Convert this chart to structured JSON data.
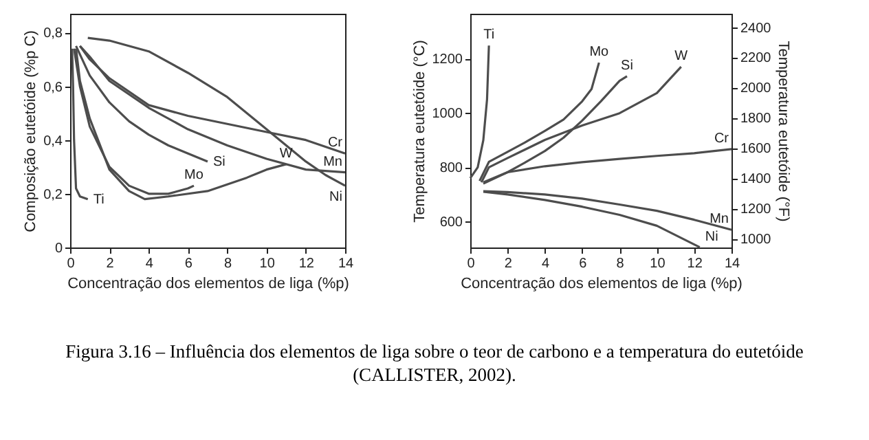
{
  "chart_data": [
    {
      "type": "line",
      "xlabel": "Concentração dos elementos de liga (%p)",
      "ylabel": "Composição eutetóide (%p C)",
      "xlim": [
        0,
        14
      ],
      "xticks": [
        0,
        2,
        4,
        6,
        8,
        10,
        12,
        14
      ],
      "ylim": [
        0,
        0.87
      ],
      "yticks": [
        0,
        {
          "value": 0.2,
          "label": "0,2"
        },
        {
          "value": 0.4,
          "label": "0,4"
        },
        {
          "value": 0.6,
          "label": "0,6"
        },
        {
          "value": 0.8,
          "label": "0,8"
        }
      ],
      "series": [
        {
          "name": "Ni",
          "color": "#4d4d4d",
          "x": [
            0.9,
            2,
            4,
            6,
            8,
            10,
            11,
            12,
            13,
            14
          ],
          "values": [
            0.78,
            0.77,
            0.73,
            0.65,
            0.56,
            0.44,
            0.38,
            0.32,
            0.27,
            0.23
          ]
        },
        {
          "name": "Cr",
          "color": "#4d4d4d",
          "x": [
            0.5,
            1,
            2,
            4,
            6,
            8,
            10,
            12,
            14
          ],
          "values": [
            0.75,
            0.7,
            0.63,
            0.53,
            0.49,
            0.46,
            0.43,
            0.4,
            0.35
          ]
        },
        {
          "name": "Mn",
          "color": "#4d4d4d",
          "x": [
            0.5,
            1,
            2,
            4,
            6,
            8,
            10,
            12,
            14
          ],
          "values": [
            0.75,
            0.71,
            0.62,
            0.52,
            0.44,
            0.38,
            0.33,
            0.29,
            0.28
          ]
        },
        {
          "name": "Si",
          "color": "#4d4d4d",
          "x": [
            0.3,
            1,
            2,
            3,
            4,
            5,
            6,
            7
          ],
          "values": [
            0.75,
            0.64,
            0.54,
            0.47,
            0.42,
            0.38,
            0.35,
            0.32
          ]
        },
        {
          "name": "Mo",
          "color": "#4d4d4d",
          "x": [
            0.2,
            0.5,
            1,
            2,
            3,
            4,
            5,
            6,
            6.3
          ],
          "values": [
            0.74,
            0.6,
            0.45,
            0.3,
            0.23,
            0.2,
            0.2,
            0.22,
            0.23
          ]
        },
        {
          "name": "W",
          "color": "#4d4d4d",
          "x": [
            0.3,
            0.5,
            1,
            2,
            3,
            3.8,
            5,
            7,
            9,
            10,
            11
          ],
          "values": [
            0.74,
            0.62,
            0.48,
            0.29,
            0.21,
            0.18,
            0.19,
            0.21,
            0.26,
            0.29,
            0.31
          ]
        },
        {
          "name": "Ti",
          "color": "#4d4d4d",
          "x": [
            0.1,
            0.15,
            0.2,
            0.3,
            0.5,
            0.9
          ],
          "values": [
            0.74,
            0.6,
            0.4,
            0.22,
            0.19,
            0.18
          ]
        }
      ]
    },
    {
      "type": "line",
      "xlabel": "Concentração dos elementos de liga (%p)",
      "ylabel": "Temperatura eutetóide (°C)",
      "y2label": "Temperatura eutetóide (°F)",
      "xlim": [
        0,
        14
      ],
      "xticks": [
        0,
        2,
        4,
        6,
        8,
        10,
        12,
        14
      ],
      "ylim": [
        505,
        1365
      ],
      "yticks": [
        600,
        800,
        1000,
        1200
      ],
      "y2lim": [
        941,
        2489
      ],
      "y2ticks": [
        1000,
        1200,
        1400,
        1600,
        1800,
        2000,
        2200,
        2400
      ],
      "series": [
        {
          "name": "Ti",
          "color": "#4d4d4d",
          "x": [
            0,
            0.4,
            0.7,
            0.9,
            1
          ],
          "values": [
            760,
            800,
            900,
            1050,
            1248
          ]
        },
        {
          "name": "Mo",
          "color": "#4d4d4d",
          "x": [
            0.5,
            1,
            2,
            3,
            4,
            5,
            6,
            6.5,
            6.9
          ],
          "values": [
            750,
            820,
            857,
            894,
            934,
            976,
            1043,
            1088,
            1185
          ]
        },
        {
          "name": "Si",
          "color": "#4d4d4d",
          "x": [
            0.7,
            2,
            3,
            4,
            5,
            6,
            7,
            8,
            8.4
          ],
          "values": [
            740,
            782,
            820,
            860,
            909,
            972,
            1043,
            1118,
            1135
          ]
        },
        {
          "name": "W",
          "color": "#4d4d4d",
          "x": [
            0.6,
            1,
            2,
            4,
            6,
            8,
            10,
            11.3
          ],
          "values": [
            745,
            800,
            834,
            901,
            954,
            999,
            1073,
            1170
          ]
        },
        {
          "name": "Cr",
          "color": "#4d4d4d",
          "x": [
            0.7,
            2,
            4,
            6,
            8,
            10,
            12,
            14
          ],
          "values": [
            745,
            782,
            804,
            819,
            831,
            842,
            852,
            867
          ]
        },
        {
          "name": "Mn",
          "color": "#4d4d4d",
          "x": [
            0.7,
            2,
            4,
            6,
            8,
            10,
            12,
            14
          ],
          "values": [
            712,
            709,
            700,
            685,
            663,
            640,
            607,
            570
          ]
        },
        {
          "name": "Ni",
          "color": "#4d4d4d",
          "x": [
            0.7,
            2,
            4,
            6,
            8,
            10,
            12.3
          ],
          "values": [
            710,
            700,
            680,
            655,
            625,
            585,
            506
          ]
        }
      ],
      "annotations": [
        "Figura 3.16 – Influência dos elementos de liga sobre o teor de carbono e a temperatura do eutetóide (CALLISTER, 2002)."
      ]
    }
  ]
}
